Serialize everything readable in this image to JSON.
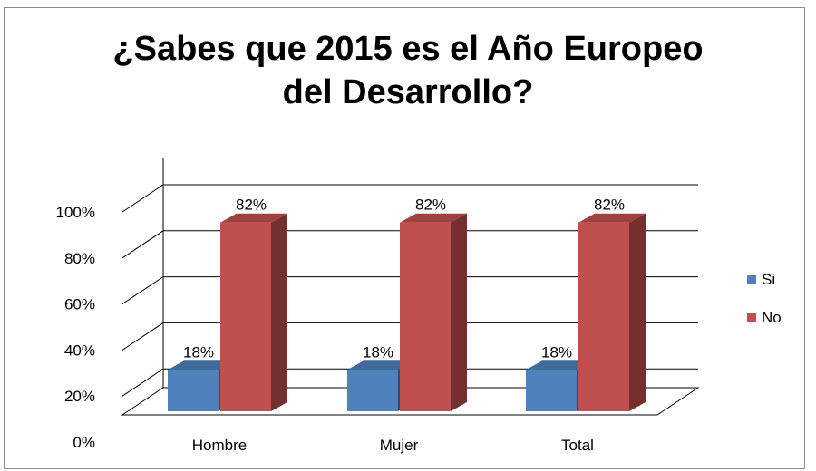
{
  "title_lines": [
    "¿Sabes que 2015 es el Año Europeo",
    "del Desarrollo?"
  ],
  "colors": {
    "si": "#4f81bd",
    "no": "#c0504d",
    "grid": "#000000",
    "text": "#000000"
  },
  "chart_data": {
    "type": "bar",
    "categories": [
      "Hombre",
      "Mujer",
      "Total"
    ],
    "series": [
      {
        "name": "Si",
        "values": [
          18,
          18,
          18
        ],
        "labels": [
          "18%",
          "18%",
          "18%"
        ]
      },
      {
        "name": "No",
        "values": [
          82,
          82,
          82
        ],
        "labels": [
          "82%",
          "82%",
          "82%"
        ]
      }
    ],
    "yticks": [
      "0%",
      "20%",
      "40%",
      "60%",
      "80%",
      "100%"
    ],
    "ylim": [
      0,
      100
    ],
    "legend_position": "right",
    "three_d": true,
    "grid": true
  }
}
